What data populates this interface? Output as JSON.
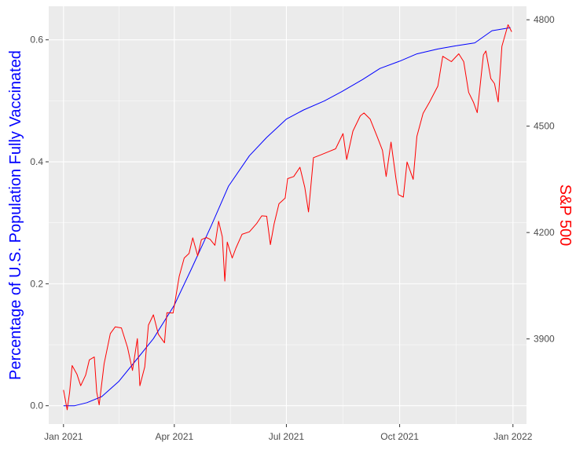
{
  "chart_data": {
    "type": "line",
    "title": "",
    "xlabel": "",
    "ylabel_left": "Percentage of U.S. Population Fully Vaccinated",
    "ylabel_right": "S&P 500",
    "x_ticks": [
      "Jan 2021",
      "Apr 2021",
      "Jul 2021",
      "Oct 2021",
      "Jan 2022"
    ],
    "x_tick_dates": [
      "2021-01-01",
      "2021-04-01",
      "2021-07-01",
      "2021-10-01",
      "2022-01-01"
    ],
    "xlim": [
      "2020-12-20",
      "2022-01-12"
    ],
    "y_left_ticks": [
      "0.0",
      "0.2",
      "0.4",
      "0.6"
    ],
    "y_left_tick_values": [
      0,
      0.2,
      0.4,
      0.6
    ],
    "y_left_lim": [
      -0.03,
      0.655
    ],
    "y_right_ticks": [
      "3900",
      "4200",
      "4500",
      "4800"
    ],
    "y_right_tick_values": [
      3900,
      4200,
      4500,
      4800
    ],
    "y_right_lim": [
      3660,
      4838
    ],
    "grid": true,
    "colors": {
      "panel": "#ebebeb",
      "grid": "#ffffff",
      "vaccinated": "#0000ff",
      "sp500": "#ff0000",
      "left_label": "#0000ff",
      "right_label": "#ff0000"
    },
    "series": [
      {
        "axis": "left",
        "x": [
          "2021-01-01",
          "2021-01-10",
          "2021-01-20",
          "2021-02-01",
          "2021-02-15",
          "2021-03-01",
          "2021-03-15",
          "2021-04-01",
          "2021-04-15",
          "2021-05-01",
          "2021-05-15",
          "2021-06-01",
          "2021-06-15",
          "2021-07-01",
          "2021-07-15",
          "2021-08-01",
          "2021-08-15",
          "2021-09-01",
          "2021-09-15",
          "2021-10-01",
          "2021-10-15",
          "2021-11-01",
          "2021-11-15",
          "2021-12-01",
          "2021-12-15",
          "2021-12-30"
        ],
        "values": [
          0.0,
          0.0,
          0.005,
          0.015,
          0.04,
          0.075,
          0.11,
          0.165,
          0.225,
          0.295,
          0.36,
          0.41,
          0.44,
          0.47,
          0.485,
          0.5,
          0.515,
          0.535,
          0.553,
          0.565,
          0.577,
          0.585,
          0.59,
          0.595,
          0.615,
          0.62
        ]
      },
      {
        "axis": "right",
        "x": [
          "2021-01-01",
          "2021-01-04",
          "2021-01-06",
          "2021-01-08",
          "2021-01-12",
          "2021-01-15",
          "2021-01-19",
          "2021-01-22",
          "2021-01-26",
          "2021-01-28",
          "2021-01-30",
          "2021-02-03",
          "2021-02-08",
          "2021-02-12",
          "2021-02-17",
          "2021-02-22",
          "2021-02-26",
          "2021-03-02",
          "2021-03-04",
          "2021-03-08",
          "2021-03-11",
          "2021-03-15",
          "2021-03-19",
          "2021-03-24",
          "2021-03-26",
          "2021-03-31",
          "2021-04-05",
          "2021-04-09",
          "2021-04-13",
          "2021-04-16",
          "2021-04-20",
          "2021-04-23",
          "2021-04-27",
          "2021-04-30",
          "2021-05-04",
          "2021-05-07",
          "2021-05-10",
          "2021-05-12",
          "2021-05-14",
          "2021-05-18",
          "2021-05-21",
          "2021-05-26",
          "2021-06-01",
          "2021-06-07",
          "2021-06-11",
          "2021-06-15",
          "2021-06-18",
          "2021-06-21",
          "2021-06-25",
          "2021-06-30",
          "2021-07-02",
          "2021-07-07",
          "2021-07-12",
          "2021-07-16",
          "2021-07-19",
          "2021-07-23",
          "2021-07-29",
          "2021-08-05",
          "2021-08-10",
          "2021-08-16",
          "2021-08-19",
          "2021-08-24",
          "2021-08-30",
          "2021-09-02",
          "2021-09-07",
          "2021-09-13",
          "2021-09-17",
          "2021-09-20",
          "2021-09-24",
          "2021-09-28",
          "2021-09-30",
          "2021-10-04",
          "2021-10-07",
          "2021-10-12",
          "2021-10-15",
          "2021-10-20",
          "2021-10-25",
          "2021-11-01",
          "2021-11-05",
          "2021-11-12",
          "2021-11-18",
          "2021-11-22",
          "2021-11-26",
          "2021-11-30",
          "2021-12-03",
          "2021-12-08",
          "2021-12-10",
          "2021-12-14",
          "2021-12-17",
          "2021-12-20",
          "2021-12-23",
          "2021-12-28",
          "2021-12-31"
        ],
        "values": [
          3756,
          3700,
          3750,
          3825,
          3800,
          3768,
          3798,
          3841,
          3849,
          3750,
          3714,
          3830,
          3915,
          3934,
          3931,
          3876,
          3811,
          3901,
          3768,
          3821,
          3939,
          3968,
          3913,
          3889,
          3974,
          3973,
          4077,
          4128,
          4141,
          4185,
          4134,
          4180,
          4186,
          4181,
          4164,
          4232,
          4188,
          4063,
          4173,
          4128,
          4156,
          4195,
          4202,
          4226,
          4247,
          4246,
          4166,
          4224,
          4281,
          4297,
          4352,
          4358,
          4384,
          4327,
          4258,
          4411,
          4419,
          4429,
          4436,
          4479,
          4406,
          4486,
          4529,
          4537,
          4520,
          4468,
          4432,
          4358,
          4455,
          4352,
          4307,
          4300,
          4399,
          4350,
          4471,
          4536,
          4566,
          4613,
          4697,
          4682,
          4704,
          4682,
          4595,
          4567,
          4538,
          4701,
          4712,
          4634,
          4620,
          4568,
          4725,
          4786,
          4766
        ]
      }
    ]
  }
}
